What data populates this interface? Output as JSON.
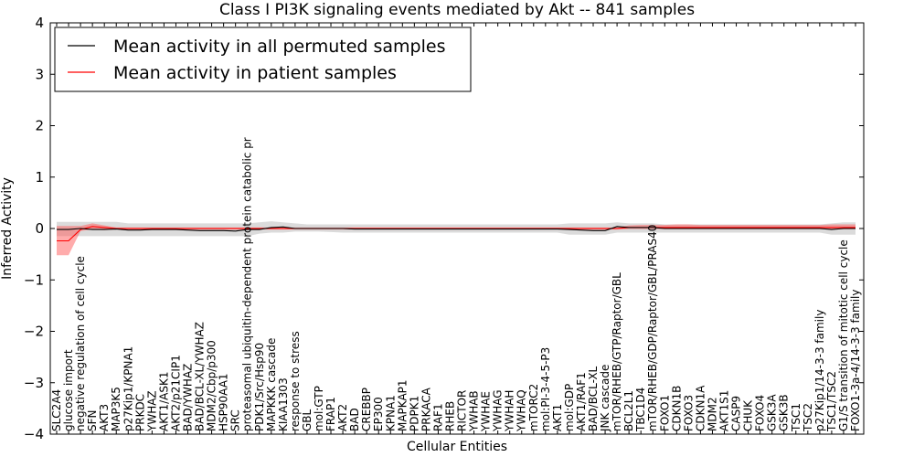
{
  "chart_data": {
    "type": "line",
    "title": "Class I PI3K signaling events mediated by Akt -- 841 samples",
    "xlabel": "Cellular Entities",
    "ylabel": "Inferred Activity",
    "ylim": [
      -4,
      4
    ],
    "yticks": [
      -4,
      -3,
      -2,
      -1,
      0,
      1,
      2,
      3,
      4
    ],
    "ytick_labels": [
      "−4",
      "−3",
      "−2",
      "−1",
      "0",
      "1",
      "2",
      "3",
      "4"
    ],
    "legend_position": "top-left",
    "categories": [
      "SLC2A4",
      "glucose import",
      "negative regulation of cell cycle",
      "SFN",
      "AKT3",
      "MAP3K5",
      "p27Kip1/KPNA1",
      "PRKDC",
      "YWHAZ",
      "AKT1/ASK1",
      "AKT2/p21CIP1",
      "BAD/YWHAZ",
      "BAD/BCL-XL/YWHAZ",
      "MDM2/Cbp/p300",
      "HSP90AA1",
      "SRC",
      "proteasomal ubiquitin-dependent protein catabolic pr",
      "PDK1/Src/Hsp90",
      "MAPKKK cascade",
      "KIAA1303",
      "response to stress",
      "GBL",
      "mol:GTP",
      "FRAP1",
      "AKT2",
      "BAD",
      "CREBBP",
      "EP300",
      "KPNA1",
      "MAPKAP1",
      "PDPK1",
      "PRKACA",
      "RAF1",
      "RHEB",
      "RICTOR",
      "YWHAB",
      "YWHAE",
      "YWHAG",
      "YWHAH",
      "YWHAQ",
      "mTORC2",
      "mol:PI-3-4-5-P3",
      "AKT1",
      "mol:GDP",
      "AKT1/RAF1",
      "BAD/BCL-XL",
      "JNK cascade",
      "mTOR/RHEB/GTP/Raptor/GBL",
      "BCL2L1",
      "TBC1D4",
      "mTOR/RHEB/GDP/Raptor/GBL/PRAS40",
      "FOXO1",
      "CDKN1B",
      "FOXO3",
      "CDKN1A",
      "MDM2",
      "AKT1S1",
      "CASP9",
      "CHUK",
      "FOXO4",
      "GSK3A",
      "GSK3B",
      "TSC1",
      "TSC2",
      "p27Kip1/14-3-3 family",
      "TSC1/TSC2",
      "G1/S transition of mitotic cell cycle",
      "FOXO1-3a-4/14-3-3 family"
    ],
    "series": [
      {
        "name": "Mean activity in all permuted samples",
        "color": "#000000",
        "values": [
          -0.02,
          -0.02,
          0.0,
          -0.02,
          -0.02,
          -0.01,
          -0.03,
          -0.03,
          -0.02,
          -0.02,
          -0.02,
          -0.03,
          -0.04,
          -0.04,
          -0.04,
          -0.05,
          -0.02,
          -0.02,
          0.02,
          0.03,
          0.0,
          0.0,
          0.0,
          0.0,
          0.0,
          -0.01,
          -0.01,
          -0.01,
          -0.01,
          -0.01,
          -0.01,
          -0.01,
          -0.01,
          -0.01,
          -0.01,
          -0.01,
          -0.01,
          -0.01,
          -0.01,
          -0.01,
          -0.01,
          -0.01,
          -0.01,
          -0.02,
          -0.03,
          -0.04,
          -0.04,
          0.04,
          0.02,
          0.02,
          0.02,
          0.0,
          0.0,
          0.0,
          0.0,
          0.0,
          0.0,
          0.0,
          0.0,
          0.0,
          0.0,
          0.0,
          0.0,
          0.0,
          0.0,
          -0.02,
          0.0,
          0.0
        ],
        "band_low": [
          -0.15,
          -0.15,
          -0.15,
          -0.15,
          -0.15,
          -0.15,
          -0.15,
          -0.15,
          -0.15,
          -0.15,
          -0.15,
          -0.15,
          -0.15,
          -0.15,
          -0.15,
          -0.15,
          -0.15,
          -0.1,
          -0.08,
          -0.08,
          -0.06,
          -0.06,
          -0.06,
          -0.07,
          -0.08,
          -0.08,
          -0.08,
          -0.08,
          -0.08,
          -0.08,
          -0.08,
          -0.08,
          -0.08,
          -0.08,
          -0.08,
          -0.08,
          -0.08,
          -0.08,
          -0.08,
          -0.08,
          -0.08,
          -0.08,
          -0.08,
          -0.12,
          -0.12,
          -0.12,
          -0.12,
          -0.08,
          -0.08,
          -0.08,
          -0.08,
          -0.08,
          -0.08,
          -0.08,
          -0.08,
          -0.08,
          -0.08,
          -0.08,
          -0.08,
          -0.08,
          -0.08,
          -0.08,
          -0.08,
          -0.08,
          -0.08,
          -0.12,
          -0.12,
          -0.12
        ],
        "band_high": [
          0.13,
          0.13,
          0.13,
          0.13,
          0.13,
          0.13,
          0.1,
          0.1,
          0.1,
          0.1,
          0.1,
          0.1,
          0.1,
          0.1,
          0.1,
          0.1,
          0.1,
          0.12,
          0.14,
          0.12,
          0.1,
          0.08,
          0.08,
          0.08,
          0.08,
          0.08,
          0.08,
          0.08,
          0.08,
          0.08,
          0.08,
          0.08,
          0.08,
          0.08,
          0.08,
          0.08,
          0.08,
          0.08,
          0.08,
          0.08,
          0.08,
          0.08,
          0.08,
          0.1,
          0.1,
          0.1,
          0.1,
          0.12,
          0.1,
          0.1,
          0.1,
          0.08,
          0.08,
          0.08,
          0.08,
          0.08,
          0.08,
          0.08,
          0.08,
          0.08,
          0.08,
          0.08,
          0.08,
          0.08,
          0.08,
          0.1,
          0.12,
          0.12
        ]
      },
      {
        "name": "Mean activity in patient samples",
        "color": "#ff0000",
        "values": [
          -0.24,
          -0.24,
          -0.02,
          0.04,
          0.02,
          0.0,
          0.0,
          0.0,
          0.0,
          0.0,
          0.0,
          0.0,
          0.0,
          0.0,
          0.0,
          0.0,
          0.0,
          0.0,
          0.0,
          0.0,
          0.0,
          0.0,
          0.0,
          0.0,
          0.0,
          0.0,
          0.0,
          0.0,
          0.0,
          0.0,
          0.0,
          0.0,
          0.0,
          0.0,
          0.0,
          0.0,
          0.0,
          0.0,
          0.0,
          0.0,
          0.0,
          0.0,
          0.0,
          0.0,
          0.0,
          0.0,
          0.0,
          0.0,
          0.02,
          0.02,
          0.02,
          0.02,
          0.02,
          0.02,
          0.02,
          0.02,
          0.02,
          0.02,
          0.02,
          0.02,
          0.02,
          0.02,
          0.02,
          0.02,
          0.02,
          0.02,
          0.02,
          0.02
        ],
        "band_low": [
          -0.52,
          -0.52,
          -0.05,
          -0.02,
          -0.03,
          -0.02,
          -0.02,
          -0.02,
          -0.02,
          -0.02,
          -0.02,
          -0.02,
          -0.02,
          -0.02,
          -0.02,
          -0.02,
          -0.02,
          -0.02,
          -0.02,
          -0.02,
          -0.02,
          -0.02,
          -0.02,
          -0.02,
          -0.02,
          -0.02,
          -0.02,
          -0.02,
          -0.02,
          -0.02,
          -0.02,
          -0.02,
          -0.02,
          -0.02,
          -0.02,
          -0.02,
          -0.02,
          -0.02,
          -0.02,
          -0.02,
          -0.02,
          -0.02,
          -0.02,
          -0.02,
          -0.02,
          -0.02,
          -0.02,
          -0.02,
          -0.01,
          -0.01,
          -0.01,
          -0.01,
          -0.01,
          -0.01,
          -0.01,
          -0.01,
          -0.01,
          -0.01,
          -0.01,
          -0.01,
          -0.01,
          -0.01,
          -0.01,
          -0.01,
          -0.01,
          -0.01,
          -0.01,
          -0.01
        ],
        "band_high": [
          0.05,
          0.05,
          0.05,
          0.1,
          0.06,
          0.02,
          0.02,
          0.02,
          0.02,
          0.02,
          0.02,
          0.02,
          0.02,
          0.02,
          0.02,
          0.02,
          0.02,
          0.02,
          0.02,
          0.02,
          0.02,
          0.02,
          0.02,
          0.02,
          0.02,
          0.02,
          0.02,
          0.02,
          0.02,
          0.02,
          0.02,
          0.02,
          0.02,
          0.02,
          0.02,
          0.02,
          0.02,
          0.02,
          0.02,
          0.02,
          0.02,
          0.02,
          0.02,
          0.02,
          0.02,
          0.02,
          0.02,
          0.02,
          0.06,
          0.07,
          0.07,
          0.07,
          0.08,
          0.08,
          0.07,
          0.07,
          0.07,
          0.07,
          0.07,
          0.07,
          0.07,
          0.07,
          0.07,
          0.07,
          0.07,
          0.08,
          0.08,
          0.08
        ]
      }
    ]
  }
}
